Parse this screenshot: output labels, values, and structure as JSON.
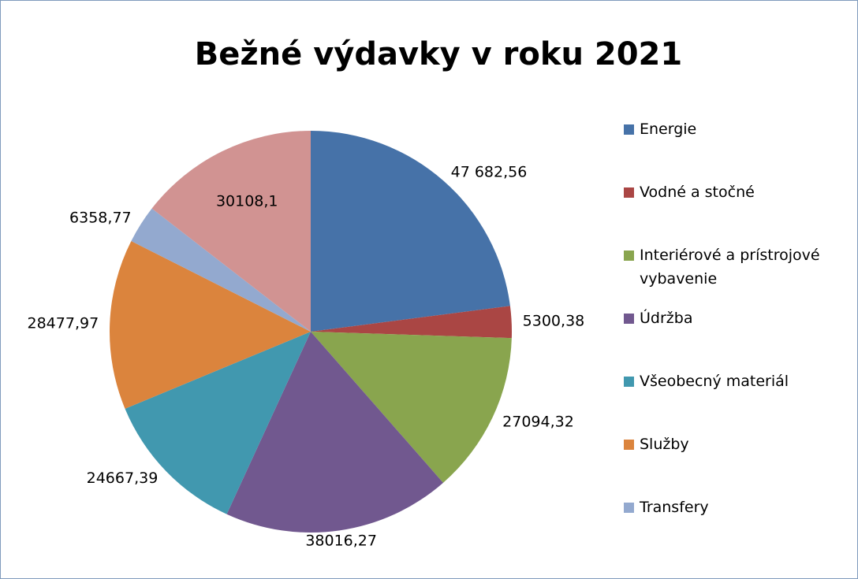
{
  "chart_data": {
    "type": "pie",
    "title": "Bežné výdavky v roku 2021",
    "categories": [
      "Energie",
      "Vodné a stočné",
      "Interiérové a prístrojové vybavenie",
      "Údržba",
      "Všeobecný materiál",
      "Služby",
      "Transfery",
      null
    ],
    "values": [
      47682.56,
      5300.38,
      27094.32,
      38016.27,
      24667.39,
      28477.97,
      6358.77,
      30108.1
    ],
    "value_labels": [
      "47 682,56",
      "5300,38",
      "27094,32",
      "38016,27",
      "24667,39",
      "28477,97",
      "6358,77",
      "30108,1"
    ],
    "colors": [
      "#4672a8",
      "#aa4644",
      "#89a54e",
      "#71588f",
      "#4198af",
      "#db843d",
      "#93a9cf",
      "#d19392"
    ],
    "legend": "right"
  }
}
